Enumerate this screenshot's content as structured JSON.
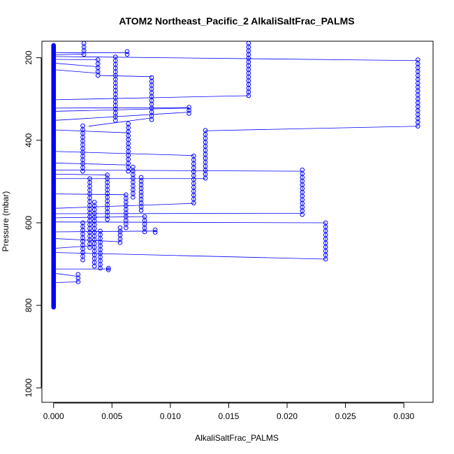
{
  "chart_data": {
    "type": "scatter",
    "title": "ATOM2 Northeast_Pacific_2 AlkaliSaltFrac_PALMS",
    "xlabel": "AlkaliSaltFrac_PALMS",
    "ylabel": "Pressure (mbar)",
    "xlim": [
      -0.001,
      0.0325
    ],
    "ylim": [
      1035,
      160
    ],
    "y_reversed": true,
    "x_ticks": [
      0.0,
      0.005,
      0.01,
      0.015,
      0.02,
      0.025,
      0.03
    ],
    "x_tick_labels": [
      "0.000",
      "0.005",
      "0.010",
      "0.015",
      "0.020",
      "0.025",
      "0.030"
    ],
    "y_ticks": [
      200,
      400,
      600,
      800,
      1000
    ],
    "y_tick_labels": [
      "200",
      "400",
      "600",
      "800",
      "1000"
    ],
    "grid": false,
    "legend": "none",
    "series": [
      {
        "color": "#0000ff",
        "marker": "open-circle",
        "line": true,
        "zero_column_y_range": [
          170,
          805
        ],
        "clusters": [
          {
            "x": 0.0026,
            "y_start": 165,
            "y_end": 192
          },
          {
            "x": 0.0038,
            "y_start": 205,
            "y_end": 243
          },
          {
            "x": 0.0053,
            "y_start": 198,
            "y_end": 352
          },
          {
            "x": 0.0063,
            "y_start": 185,
            "y_end": 192
          },
          {
            "x": 0.0084,
            "y_start": 248,
            "y_end": 350
          },
          {
            "x": 0.0116,
            "y_start": 320,
            "y_end": 335
          },
          {
            "x": 0.0167,
            "y_start": 165,
            "y_end": 292
          },
          {
            "x": 0.0312,
            "y_start": 205,
            "y_end": 366
          },
          {
            "x": 0.0025,
            "y_start": 365,
            "y_end": 475
          },
          {
            "x": 0.0064,
            "y_start": 360,
            "y_end": 475
          },
          {
            "x": 0.012,
            "y_start": 438,
            "y_end": 552
          },
          {
            "x": 0.013,
            "y_start": 376,
            "y_end": 492
          },
          {
            "x": 0.0068,
            "y_start": 465,
            "y_end": 538
          },
          {
            "x": 0.0062,
            "y_start": 532,
            "y_end": 612
          },
          {
            "x": 0.0075,
            "y_start": 490,
            "y_end": 570
          },
          {
            "x": 0.0046,
            "y_start": 484,
            "y_end": 592
          },
          {
            "x": 0.0031,
            "y_start": 493,
            "y_end": 660
          },
          {
            "x": 0.0213,
            "y_start": 472,
            "y_end": 580
          },
          {
            "x": 0.0035,
            "y_start": 550,
            "y_end": 705
          },
          {
            "x": 0.004,
            "y_start": 620,
            "y_end": 710
          },
          {
            "x": 0.0057,
            "y_start": 612,
            "y_end": 648
          },
          {
            "x": 0.0078,
            "y_start": 585,
            "y_end": 622
          },
          {
            "x": 0.0087,
            "y_start": 617,
            "y_end": 623
          },
          {
            "x": 0.0025,
            "y_start": 600,
            "y_end": 690
          },
          {
            "x": 0.0233,
            "y_start": 600,
            "y_end": 688
          },
          {
            "x": 0.0047,
            "y_start": 710,
            "y_end": 714
          },
          {
            "x": 0.0021,
            "y_start": 725,
            "y_end": 743
          }
        ],
        "connections": [
          {
            "from": [
              0.0,
              188
            ],
            "to": [
              0.0063,
              188
            ]
          },
          {
            "from": [
              0.0,
              193
            ],
            "to": [
              0.0026,
              191
            ]
          },
          {
            "from": [
              0.0,
              197
            ],
            "to": [
              0.0312,
              207
            ]
          },
          {
            "from": [
              0.0,
              204
            ],
            "to": [
              0.0038,
              205
            ]
          },
          {
            "from": [
              0.0,
              213
            ],
            "to": [
              0.0038,
              222
            ]
          },
          {
            "from": [
              0.0,
              229
            ],
            "to": [
              0.004,
              238
            ]
          },
          {
            "from": [
              0.004,
              243
            ],
            "to": [
              0.0084,
              246
            ]
          },
          {
            "from": [
              0.0,
              302
            ],
            "to": [
              0.0167,
              292
            ]
          },
          {
            "from": [
              0.0,
              322
            ],
            "to": [
              0.0116,
              321
            ]
          },
          {
            "from": [
              0.0,
              330
            ],
            "to": [
              0.0116,
              322
            ]
          },
          {
            "from": [
              0.0,
              352
            ],
            "to": [
              0.0116,
              332
            ]
          },
          {
            "from": [
              0.003,
              366
            ],
            "to": [
              0.0084,
              346
            ]
          },
          {
            "from": [
              0.0,
              375
            ],
            "to": [
              0.0064,
              382
            ]
          },
          {
            "from": [
              0.013,
              377
            ],
            "to": [
              0.0312,
              366
            ]
          },
          {
            "from": [
              0.0,
              427
            ],
            "to": [
              0.012,
              437
            ]
          },
          {
            "from": [
              0.0,
              455
            ],
            "to": [
              0.0064,
              460
            ]
          },
          {
            "from": [
              0.0,
              472
            ],
            "to": [
              0.0213,
              475
            ]
          },
          {
            "from": [
              0.0,
              482
            ],
            "to": [
              0.0046,
              484
            ]
          },
          {
            "from": [
              0.0,
              493
            ],
            "to": [
              0.013,
              493
            ]
          },
          {
            "from": [
              0.0,
              530
            ],
            "to": [
              0.0062,
              532
            ]
          },
          {
            "from": [
              0.0,
              565
            ],
            "to": [
              0.012,
              553
            ]
          },
          {
            "from": [
              0.0,
              578
            ],
            "to": [
              0.0213,
              577
            ]
          },
          {
            "from": [
              0.0,
              588
            ],
            "to": [
              0.0078,
              585
            ]
          },
          {
            "from": [
              0.0,
              598
            ],
            "to": [
              0.0233,
              600
            ]
          },
          {
            "from": [
              0.0,
              622
            ],
            "to": [
              0.0087,
              620
            ]
          },
          {
            "from": [
              0.0,
              638
            ],
            "to": [
              0.0057,
              646
            ]
          },
          {
            "from": [
              0.0,
              662
            ],
            "to": [
              0.0035,
              655
            ]
          },
          {
            "from": [
              0.0,
              672
            ],
            "to": [
              0.0233,
              688
            ]
          },
          {
            "from": [
              0.0,
              712
            ],
            "to": [
              0.0047,
              712
            ]
          },
          {
            "from": [
              0.0,
              722
            ],
            "to": [
              0.0021,
              730
            ]
          },
          {
            "from": [
              0.0,
              745
            ],
            "to": [
              0.0021,
              743
            ]
          }
        ]
      }
    ]
  }
}
